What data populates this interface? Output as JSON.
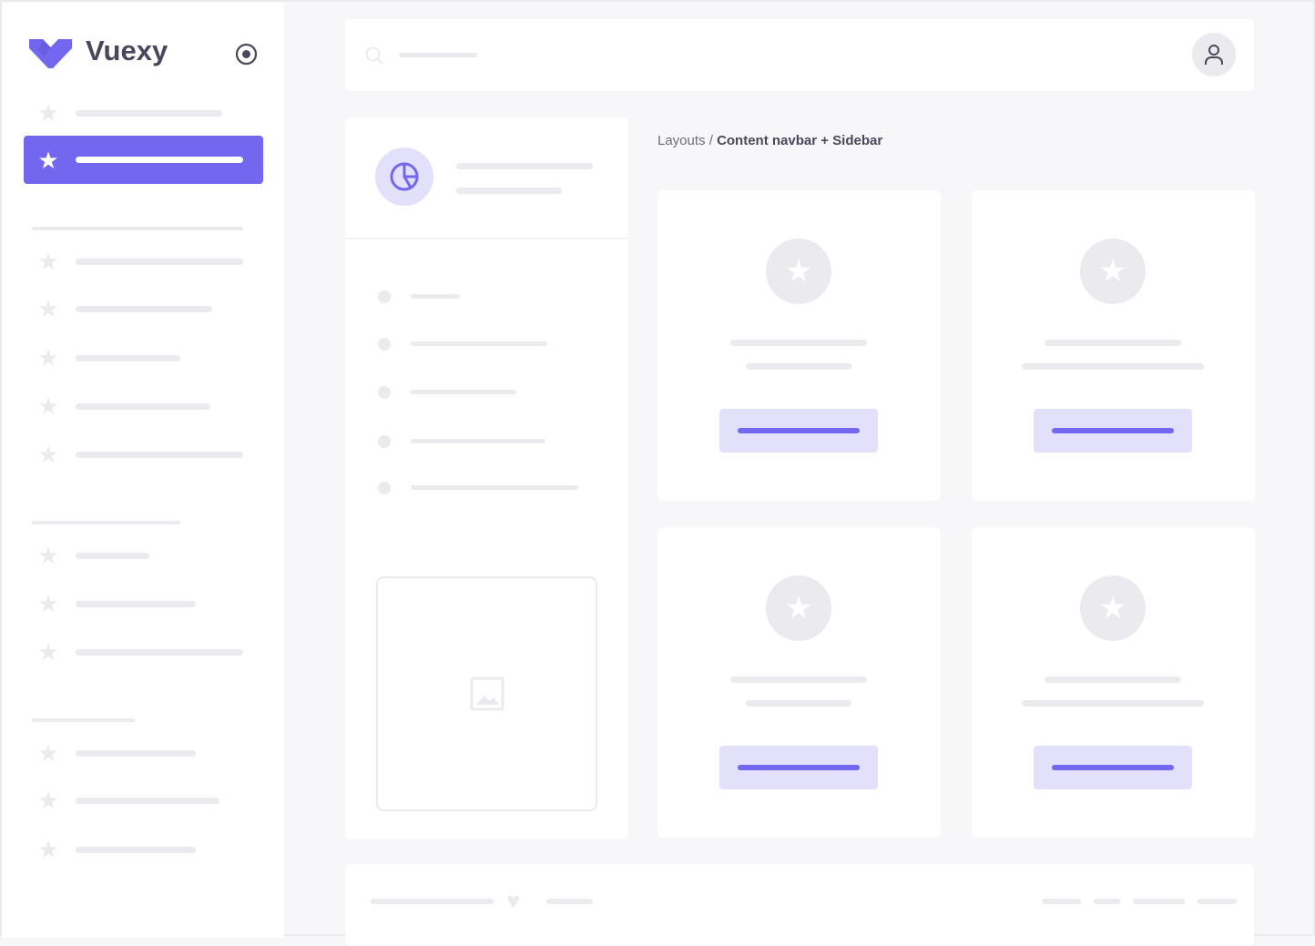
{
  "brand": {
    "name": "Vuexy",
    "color": "#7367f0"
  },
  "breadcrumb": {
    "parent": "Layouts",
    "separator": "/",
    "current": "Content navbar + Sidebar"
  },
  "icons": {
    "logo": "vuexy-logo-icon",
    "collapse": "radio-circle-icon",
    "nav_item": "star-icon",
    "search": "search-icon",
    "user": "user-icon",
    "panel_header": "pie-chart-icon",
    "image": "image-icon",
    "card": "star-icon",
    "footer": "heart-icon"
  },
  "colors": {
    "accent": "#7367f0",
    "accent_light": "#e3e0fc",
    "placeholder": "#ebebef",
    "background": "#f7f7f9"
  }
}
